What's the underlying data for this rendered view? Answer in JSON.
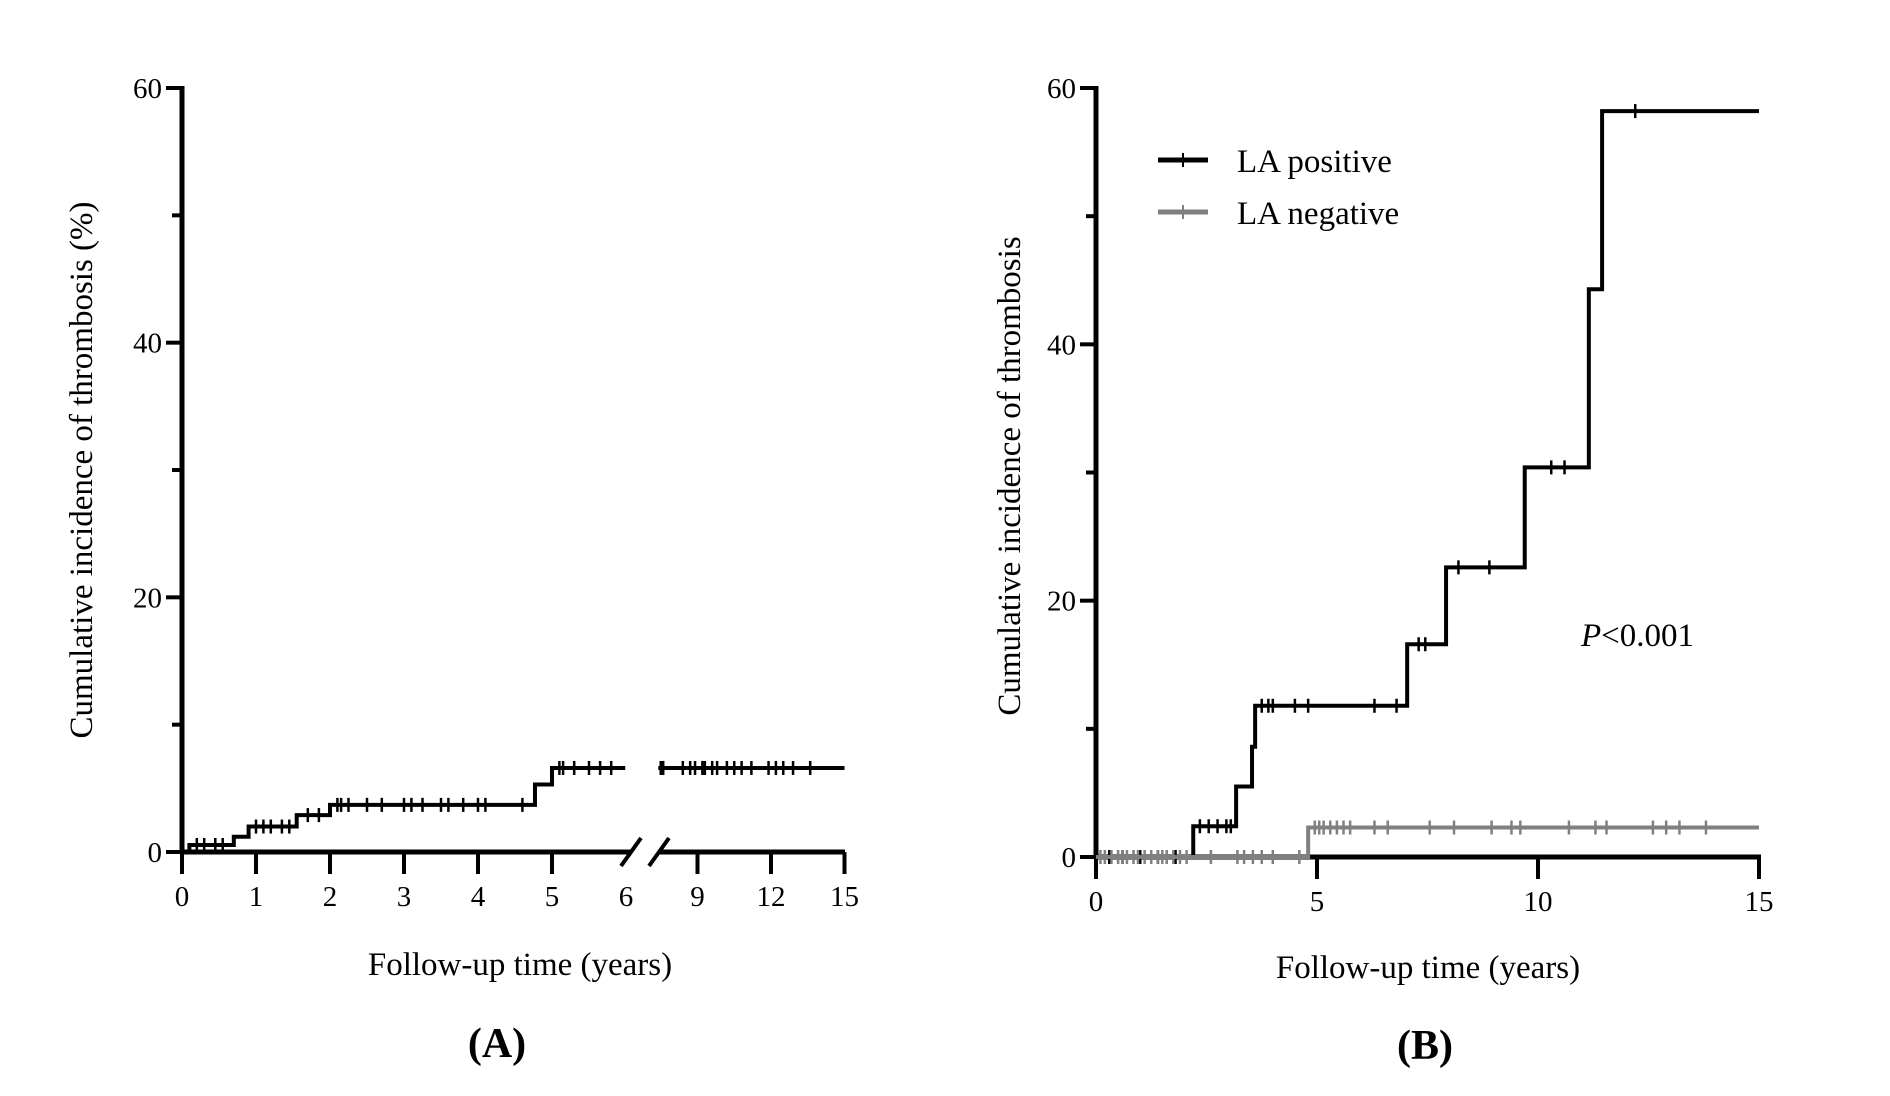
{
  "chart_data": [
    {
      "type": "line",
      "panel_label": "(A)",
      "xlabel": "Follow-up time (years)",
      "ylabel": "Cumulative incidence of thrombosis (%)",
      "ylim": [
        0,
        60
      ],
      "yticks": [
        "0",
        "20",
        "40",
        "60"
      ],
      "xticks": [
        "0",
        "1",
        "2",
        "3",
        "4",
        "5",
        "6",
        "9",
        "12",
        "15"
      ],
      "x_axis_break": [
        6,
        9
      ],
      "step": true,
      "series": [
        {
          "color": "#000000",
          "steps": [
            [
              0,
              0
            ],
            [
              0.1,
              0.55
            ],
            [
              0.7,
              1.2
            ],
            [
              0.9,
              2.0
            ],
            [
              1.55,
              2.9
            ],
            [
              2.0,
              3.7
            ],
            [
              4.77,
              5.3
            ],
            [
              5.0,
              6.6
            ]
          ],
          "end_x": 15,
          "censored_x": [
            0.2,
            0.3,
            0.45,
            0.55,
            1.0,
            1.1,
            1.2,
            1.35,
            1.45,
            1.7,
            1.85,
            2.1,
            2.15,
            2.25,
            2.5,
            2.7,
            3.0,
            3.1,
            3.25,
            3.5,
            3.6,
            3.8,
            4.0,
            4.1,
            4.6,
            5.1,
            5.15,
            5.3,
            5.5,
            5.65,
            5.8,
            7.5,
            7.6,
            8.4,
            8.7,
            8.9,
            9.2,
            9.3,
            9.6,
            9.8,
            10.2,
            10.5,
            10.8,
            11.2,
            11.9,
            12.2,
            12.5,
            12.9,
            13.6
          ]
        }
      ]
    },
    {
      "type": "line",
      "panel_label": "(B)",
      "xlabel": "Follow-up time (years)",
      "ylabel": "Cumulative incidence of thrombosis",
      "ylim": [
        0,
        60
      ],
      "xlim": [
        0,
        15
      ],
      "yticks": [
        "0",
        "20",
        "40",
        "60"
      ],
      "xticks": [
        "0",
        "5",
        "10",
        "15"
      ],
      "legend_position": "top-left",
      "annotation": {
        "italic": "P",
        "text": "<0.001"
      },
      "step": true,
      "series": [
        {
          "name": "LA positive",
          "color": "#000000",
          "steps": [
            [
              0,
              0
            ],
            [
              2.2,
              2.4
            ],
            [
              3.17,
              5.5
            ],
            [
              3.53,
              8.6
            ],
            [
              3.6,
              11.8
            ],
            [
              7.04,
              16.6
            ],
            [
              7.92,
              22.6
            ],
            [
              9.7,
              30.4
            ],
            [
              11.15,
              44.3
            ],
            [
              11.45,
              58.2
            ]
          ],
          "end_x": 15,
          "censored_x": [
            0.3,
            0.6,
            1.0,
            1.4,
            1.8,
            2.35,
            2.55,
            2.75,
            2.95,
            3.05,
            3.75,
            3.9,
            4.0,
            4.5,
            4.8,
            6.3,
            6.8,
            7.3,
            7.45,
            8.2,
            8.9,
            10.3,
            10.6,
            12.2
          ]
        },
        {
          "name": "LA negative",
          "color": "#808080",
          "steps": [
            [
              0,
              0
            ],
            [
              4.8,
              2.3
            ]
          ],
          "end_x": 15,
          "censored_x": [
            0.1,
            0.2,
            0.35,
            0.5,
            0.6,
            0.7,
            0.85,
            0.95,
            1.1,
            1.25,
            1.4,
            1.5,
            1.6,
            1.75,
            1.9,
            2.05,
            2.6,
            3.2,
            3.35,
            3.55,
            3.75,
            4.0,
            4.6,
            4.95,
            5.05,
            5.15,
            5.3,
            5.45,
            5.6,
            5.75,
            6.3,
            6.6,
            7.55,
            8.1,
            8.95,
            9.4,
            9.6,
            10.7,
            11.3,
            11.55,
            12.6,
            12.9,
            13.2,
            13.8
          ]
        }
      ]
    }
  ]
}
